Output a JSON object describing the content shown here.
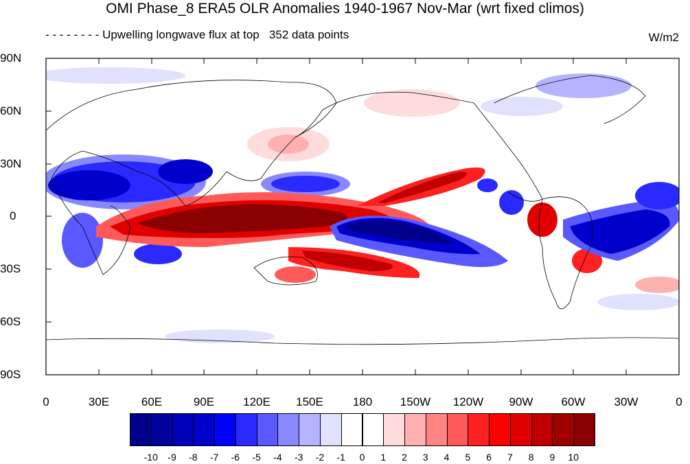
{
  "title": "OMI Phase_8 ERA5 OLR Anomalies 1940-1967 Nov-Mar (wrt fixed climos)",
  "subtitle": "Upwelling longwave flux at top   352 data points",
  "units": "W/m2",
  "y_ticks": [
    "90N",
    "60N",
    "30N",
    "0",
    "30S",
    "60S",
    "90S"
  ],
  "x_ticks": [
    "0",
    "30E",
    "60E",
    "90E",
    "120E",
    "150E",
    "180",
    "150W",
    "120W",
    "90W",
    "60W",
    "30W",
    "0"
  ],
  "colorbar": {
    "labels": [
      "-10",
      "-9",
      "-8",
      "-7",
      "-6",
      "-5",
      "-4",
      "-3",
      "-2",
      "-1",
      "0",
      "1",
      "2",
      "3",
      "4",
      "5",
      "6",
      "7",
      "8",
      "9",
      "10"
    ],
    "colors": [
      "#00008b",
      "#00009d",
      "#0000b8",
      "#0000cd",
      "#0000ff",
      "#2a2aff",
      "#5959ff",
      "#8989ff",
      "#b5b5ff",
      "#e0e0ff",
      "#ffffff",
      "#ffffff",
      "#ffdcdc",
      "#ffb0b0",
      "#ff8484",
      "#ff5a5a",
      "#ff2020",
      "#ff0000",
      "#e00000",
      "#c00000",
      "#a00000",
      "#8b0000"
    ]
  }
}
